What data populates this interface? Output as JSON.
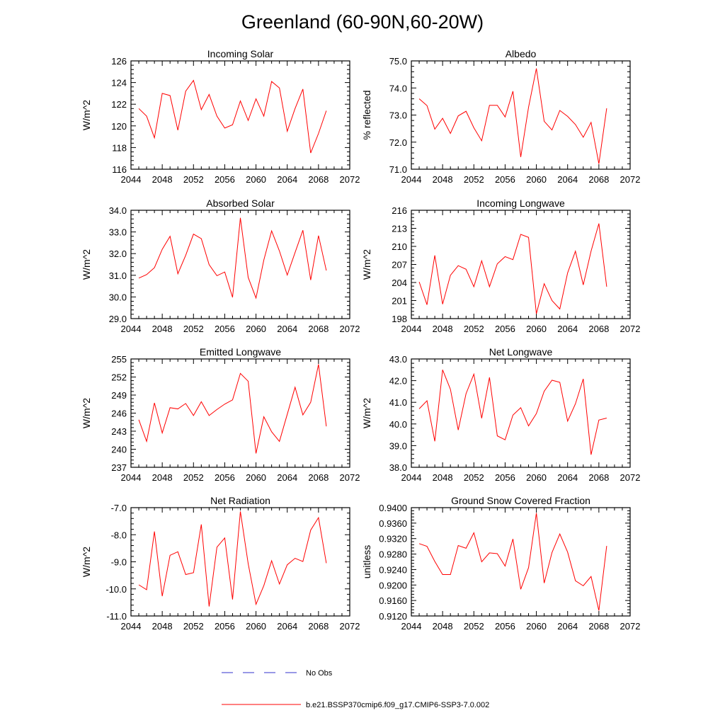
{
  "title": "Greenland (60-90N,60-20W)",
  "colors": {
    "model": "#ff0000",
    "obs": "#3333cc",
    "axis": "#000000"
  },
  "legend": {
    "obs_label": "No Obs",
    "model_label": "b.e21.BSSP370cmip6.f09_g17.CMIP6-SSP3-7.0.002"
  },
  "chart_data": [
    {
      "type": "line",
      "title": "Incoming Solar",
      "ylabel": "W/m^2",
      "xlim": [
        2044,
        2072
      ],
      "xticks": [
        "2044",
        "2048",
        "2052",
        "2056",
        "2060",
        "2064",
        "2068",
        "2072"
      ],
      "ylim": [
        116,
        126
      ],
      "yticks": [
        "116",
        "118",
        "120",
        "122",
        "124",
        "126"
      ],
      "x": [
        2045,
        2046,
        2047,
        2048,
        2049,
        2050,
        2051,
        2052,
        2053,
        2054,
        2055,
        2056,
        2057,
        2058,
        2059,
        2060,
        2061,
        2062,
        2063,
        2064,
        2065,
        2066,
        2067,
        2068,
        2069
      ],
      "series": [
        {
          "name": "b.e21.BSSP370cmip6.f09_g17.CMIP6-SSP3-7.0.002",
          "values": [
            121.6,
            120.9,
            118.9,
            123.0,
            122.8,
            119.6,
            123.2,
            124.2,
            121.5,
            122.9,
            120.9,
            119.8,
            120.1,
            122.3,
            120.5,
            122.5,
            120.9,
            124.1,
            123.5,
            119.5,
            121.6,
            123.4,
            117.5,
            119.3,
            121.4
          ]
        }
      ]
    },
    {
      "type": "line",
      "title": "Albedo",
      "ylabel": "% reflected",
      "xlim": [
        2044,
        2072
      ],
      "xticks": [
        "2044",
        "2048",
        "2052",
        "2056",
        "2060",
        "2064",
        "2068",
        "2072"
      ],
      "ylim": [
        71.0,
        75.0
      ],
      "yticks": [
        "71.0",
        "72.0",
        "73.0",
        "74.0",
        "75.0"
      ],
      "x": [
        2045,
        2046,
        2047,
        2048,
        2049,
        2050,
        2051,
        2052,
        2053,
        2054,
        2055,
        2056,
        2057,
        2058,
        2059,
        2060,
        2061,
        2062,
        2063,
        2064,
        2065,
        2066,
        2067,
        2068,
        2069
      ],
      "series": [
        {
          "name": "b.e21.BSSP370cmip6.f09_g17.CMIP6-SSP3-7.0.002",
          "values": [
            73.6,
            73.35,
            72.48,
            72.88,
            72.32,
            72.97,
            73.14,
            72.53,
            72.05,
            73.36,
            73.36,
            72.93,
            73.88,
            71.45,
            73.29,
            74.72,
            72.77,
            72.45,
            73.17,
            72.95,
            72.65,
            72.18,
            72.73,
            71.2,
            73.25
          ]
        }
      ]
    },
    {
      "type": "line",
      "title": "Absorbed Solar",
      "ylabel": "W/m^2",
      "xlim": [
        2044,
        2072
      ],
      "xticks": [
        "2044",
        "2048",
        "2052",
        "2056",
        "2060",
        "2064",
        "2068",
        "2072"
      ],
      "ylim": [
        29.0,
        34.0
      ],
      "yticks": [
        "29.0",
        "30.0",
        "31.0",
        "32.0",
        "33.0",
        "34.0"
      ],
      "x": [
        2045,
        2046,
        2047,
        2048,
        2049,
        2050,
        2051,
        2052,
        2053,
        2054,
        2055,
        2056,
        2057,
        2058,
        2059,
        2060,
        2061,
        2062,
        2063,
        2064,
        2065,
        2066,
        2067,
        2068,
        2069
      ],
      "series": [
        {
          "name": "b.e21.BSSP370cmip6.f09_g17.CMIP6-SSP3-7.0.002",
          "values": [
            30.87,
            31.03,
            31.35,
            32.2,
            32.8,
            31.07,
            31.92,
            32.9,
            32.69,
            31.49,
            30.98,
            31.15,
            29.98,
            33.65,
            30.9,
            29.95,
            31.7,
            33.05,
            32.12,
            31.01,
            32.05,
            33.08,
            30.78,
            32.83,
            31.22
          ]
        }
      ]
    },
    {
      "type": "line",
      "title": "Incoming Longwave",
      "ylabel": "W/m^2",
      "xlim": [
        2044,
        2072
      ],
      "xticks": [
        "2044",
        "2048",
        "2052",
        "2056",
        "2060",
        "2064",
        "2068",
        "2072"
      ],
      "ylim": [
        198,
        216
      ],
      "yticks": [
        "198",
        "201",
        "204",
        "207",
        "210",
        "213",
        "216"
      ],
      "x": [
        2045,
        2046,
        2047,
        2048,
        2049,
        2050,
        2051,
        2052,
        2053,
        2054,
        2055,
        2056,
        2057,
        2058,
        2059,
        2060,
        2061,
        2062,
        2063,
        2064,
        2065,
        2066,
        2067,
        2068,
        2069
      ],
      "series": [
        {
          "name": "b.e21.BSSP370cmip6.f09_g17.CMIP6-SSP3-7.0.002",
          "values": [
            204.1,
            200.3,
            208.5,
            200.4,
            205.2,
            206.8,
            206.2,
            203.3,
            207.6,
            203.3,
            207.1,
            208.3,
            207.8,
            212.0,
            211.5,
            198.8,
            203.8,
            201.0,
            199.6,
            205.6,
            209.2,
            203.6,
            209.2,
            213.8,
            203.3
          ]
        }
      ]
    },
    {
      "type": "line",
      "title": "Emitted Longwave",
      "ylabel": "W/m^2",
      "xlim": [
        2044,
        2072
      ],
      "xticks": [
        "2044",
        "2048",
        "2052",
        "2056",
        "2060",
        "2064",
        "2068",
        "2072"
      ],
      "ylim": [
        237,
        255
      ],
      "yticks": [
        "237",
        "240",
        "243",
        "246",
        "249",
        "252",
        "255"
      ],
      "x": [
        2045,
        2046,
        2047,
        2048,
        2049,
        2050,
        2051,
        2052,
        2053,
        2054,
        2055,
        2056,
        2057,
        2058,
        2059,
        2060,
        2061,
        2062,
        2063,
        2064,
        2065,
        2066,
        2067,
        2068,
        2069
      ],
      "series": [
        {
          "name": "b.e21.BSSP370cmip6.f09_g17.CMIP6-SSP3-7.0.002",
          "values": [
            244.9,
            241.3,
            247.7,
            242.7,
            246.9,
            246.7,
            247.6,
            245.6,
            247.9,
            245.6,
            246.6,
            247.5,
            248.2,
            252.6,
            251.3,
            239.3,
            245.4,
            242.9,
            241.3,
            245.8,
            250.3,
            245.7,
            247.8,
            254.1,
            243.8
          ]
        }
      ]
    },
    {
      "type": "line",
      "title": "Net Longwave",
      "ylabel": "W/m^2",
      "xlim": [
        2044,
        2072
      ],
      "xticks": [
        "2044",
        "2048",
        "2052",
        "2056",
        "2060",
        "2064",
        "2068",
        "2072"
      ],
      "ylim": [
        38.0,
        43.0
      ],
      "yticks": [
        "38.0",
        "39.0",
        "40.0",
        "41.0",
        "42.0",
        "43.0"
      ],
      "x": [
        2045,
        2046,
        2047,
        2048,
        2049,
        2050,
        2051,
        2052,
        2053,
        2054,
        2055,
        2056,
        2057,
        2058,
        2059,
        2060,
        2061,
        2062,
        2063,
        2064,
        2065,
        2066,
        2067,
        2068,
        2069
      ],
      "series": [
        {
          "name": "b.e21.BSSP370cmip6.f09_g17.CMIP6-SSP3-7.0.002",
          "values": [
            40.7,
            41.07,
            39.2,
            42.5,
            41.6,
            39.72,
            41.4,
            42.3,
            40.26,
            42.15,
            39.45,
            39.27,
            40.41,
            40.75,
            39.91,
            40.48,
            41.51,
            42.02,
            41.92,
            40.13,
            40.93,
            42.08,
            38.58,
            40.18,
            40.27
          ]
        }
      ]
    },
    {
      "type": "line",
      "title": "Net Radiation",
      "ylabel": "W/m^2",
      "xlim": [
        2044,
        2072
      ],
      "xticks": [
        "2044",
        "2048",
        "2052",
        "2056",
        "2060",
        "2064",
        "2068",
        "2072"
      ],
      "ylim": [
        -11.0,
        -7.0
      ],
      "yticks": [
        "-11.0",
        "-10.0",
        "-9.0",
        "-8.0",
        "-7.0"
      ],
      "x": [
        2045,
        2046,
        2047,
        2048,
        2049,
        2050,
        2051,
        2052,
        2053,
        2054,
        2055,
        2056,
        2057,
        2058,
        2059,
        2060,
        2061,
        2062,
        2063,
        2064,
        2065,
        2066,
        2067,
        2068,
        2069
      ],
      "series": [
        {
          "name": "b.e21.BSSP370cmip6.f09_g17.CMIP6-SSP3-7.0.002",
          "values": [
            -9.85,
            -10.03,
            -7.88,
            -10.27,
            -8.76,
            -8.63,
            -9.47,
            -9.4,
            -7.62,
            -10.65,
            -8.46,
            -8.12,
            -10.39,
            -7.14,
            -9.07,
            -10.57,
            -9.88,
            -8.96,
            -9.82,
            -9.11,
            -8.87,
            -8.99,
            -7.83,
            -7.37,
            -9.05
          ]
        }
      ]
    },
    {
      "type": "line",
      "title": "Ground Snow Covered Fraction",
      "ylabel": "unitless",
      "xlim": [
        2044,
        2072
      ],
      "xticks": [
        "2044",
        "2048",
        "2052",
        "2056",
        "2060",
        "2064",
        "2068",
        "2072"
      ],
      "ylim": [
        0.912,
        0.94
      ],
      "yticks": [
        "0.9120",
        "0.9160",
        "0.9200",
        "0.9240",
        "0.9280",
        "0.9320",
        "0.9360",
        "0.9400"
      ],
      "x": [
        2045,
        2046,
        2047,
        2048,
        2049,
        2050,
        2051,
        2052,
        2053,
        2054,
        2055,
        2056,
        2057,
        2058,
        2059,
        2060,
        2061,
        2062,
        2063,
        2064,
        2065,
        2066,
        2067,
        2068,
        2069
      ],
      "series": [
        {
          "name": "b.e21.BSSP370cmip6.f09_g17.CMIP6-SSP3-7.0.002",
          "values": [
            0.9307,
            0.93,
            0.9261,
            0.9227,
            0.9227,
            0.9302,
            0.9295,
            0.9335,
            0.926,
            0.9283,
            0.9281,
            0.9249,
            0.9319,
            0.9189,
            0.9245,
            0.9386,
            0.9205,
            0.9284,
            0.9332,
            0.9285,
            0.9211,
            0.9198,
            0.9222,
            0.9134,
            0.9301
          ]
        }
      ]
    }
  ]
}
